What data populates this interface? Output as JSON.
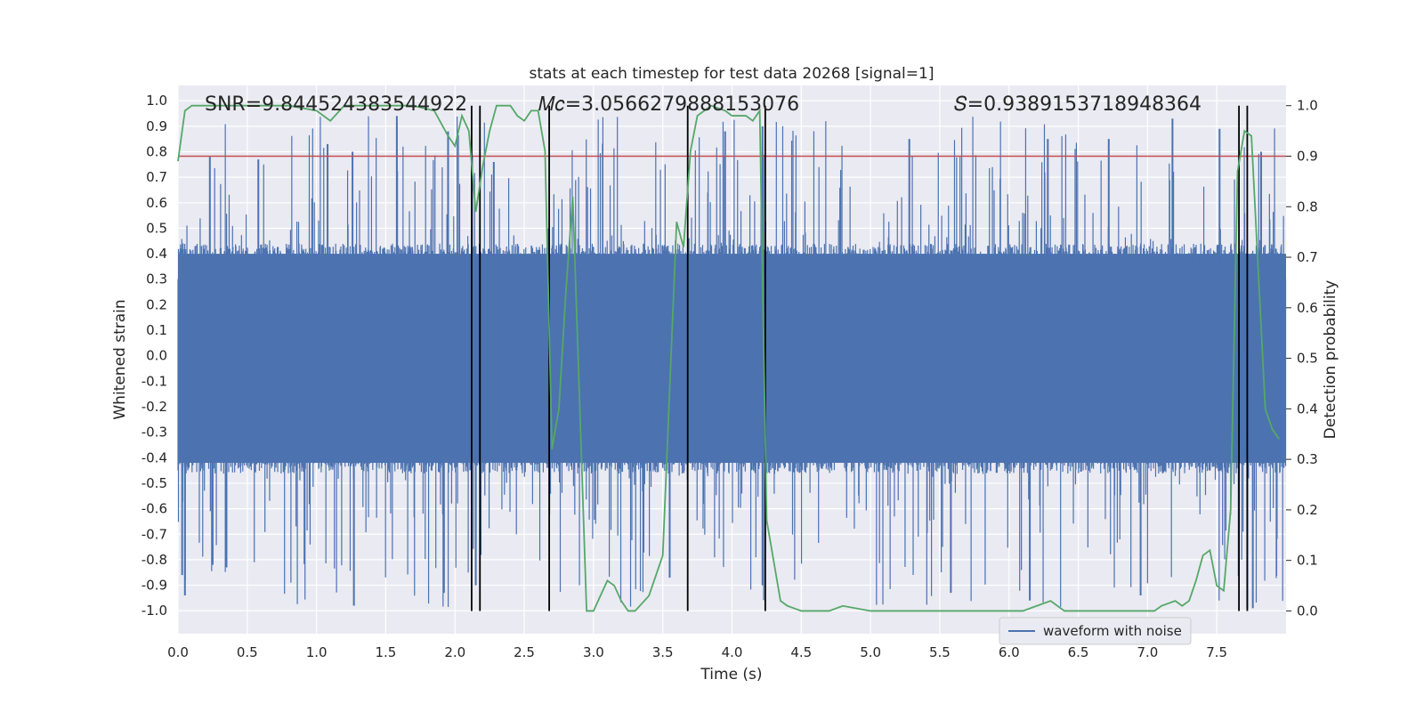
{
  "chart_data": {
    "type": "line",
    "title": "stats at each timestep for test data 20268 [signal=1]",
    "xlabel": "Time (s)",
    "ylabel_left": "Whitened strain",
    "ylabel_right": "Detection probability",
    "xlim": [
      0.0,
      8.0
    ],
    "ylim_left": [
      -1.09,
      1.06
    ],
    "ylim_right": [
      -0.045,
      1.04
    ],
    "x_ticks": [
      "0.0",
      "0.5",
      "1.0",
      "1.5",
      "2.0",
      "2.5",
      "3.0",
      "3.5",
      "4.0",
      "4.5",
      "5.0",
      "5.5",
      "6.0",
      "6.5",
      "7.0",
      "7.5"
    ],
    "x_tick_values": [
      0.0,
      0.5,
      1.0,
      1.5,
      2.0,
      2.5,
      3.0,
      3.5,
      4.0,
      4.5,
      5.0,
      5.5,
      6.0,
      6.5,
      7.0,
      7.5
    ],
    "y_ticks_left": [
      "1.0",
      "0.9",
      "0.8",
      "0.7",
      "0.6",
      "0.5",
      "0.4",
      "0.3",
      "0.2",
      "0.1",
      "0.0",
      "-0.1",
      "-0.2",
      "-0.3",
      "-0.4",
      "-0.5",
      "-0.6",
      "-0.7",
      "-0.8",
      "-0.9",
      "-1.0"
    ],
    "y_tick_values_left": [
      1.0,
      0.9,
      0.8,
      0.7,
      0.6,
      0.5,
      0.4,
      0.3,
      0.2,
      0.1,
      0.0,
      -0.1,
      -0.2,
      -0.3,
      -0.4,
      -0.5,
      -0.6,
      -0.7,
      -0.8,
      -0.9,
      -1.0
    ],
    "y_ticks_right": [
      "1.0",
      "0.9",
      "0.8",
      "0.7",
      "0.6",
      "0.5",
      "0.4",
      "0.3",
      "0.2",
      "0.1",
      "0.0"
    ],
    "y_tick_values_right": [
      1.0,
      0.9,
      0.8,
      0.7,
      0.6,
      0.5,
      0.4,
      0.3,
      0.2,
      0.1,
      0.0
    ],
    "annotations": [
      {
        "text": "SNR=9.844524383544922",
        "x": 0.2
      },
      {
        "text": "𝑀𝑐=3.0566279888153076",
        "x": 2.6
      },
      {
        "text": "𝑆=0.9389153718948364",
        "x": 5.6
      }
    ],
    "legend": {
      "label": "waveform with noise",
      "position": "lower-right"
    },
    "colors": {
      "waveform": "#4c72b0",
      "probability": "#55a868",
      "threshold": "#c44e52",
      "markers": "#000000",
      "plot_bg": "#eaeaf2",
      "grid": "#ffffff"
    },
    "waveform": {
      "name": "waveform with noise",
      "envelope_typical": [
        -0.42,
        0.4
      ],
      "peaks_max": 0.94,
      "troughs_min": -0.99,
      "notable_peaks": [
        {
          "x": 0.23,
          "y": 0.78
        },
        {
          "x": 0.58,
          "y": 0.77
        },
        {
          "x": 1.08,
          "y": 0.83
        },
        {
          "x": 1.26,
          "y": 0.8
        },
        {
          "x": 1.58,
          "y": 0.94
        },
        {
          "x": 1.95,
          "y": 0.88
        },
        {
          "x": 2.28,
          "y": 0.76
        },
        {
          "x": 3.95,
          "y": 0.88
        },
        {
          "x": 4.22,
          "y": 0.9
        },
        {
          "x": 5.28,
          "y": 0.85
        },
        {
          "x": 6.28,
          "y": 0.85
        },
        {
          "x": 6.72,
          "y": 0.85
        },
        {
          "x": 7.18,
          "y": 0.93
        },
        {
          "x": 7.52,
          "y": 0.89
        },
        {
          "x": 7.82,
          "y": 0.8
        }
      ],
      "notable_troughs": [
        {
          "x": 0.03,
          "y": -0.86
        },
        {
          "x": 0.05,
          "y": -0.94
        },
        {
          "x": 0.25,
          "y": -0.82
        },
        {
          "x": 0.35,
          "y": -0.83
        },
        {
          "x": 1.27,
          "y": -0.98
        },
        {
          "x": 1.92,
          "y": -0.93
        },
        {
          "x": 2.15,
          "y": -0.9
        },
        {
          "x": 3.55,
          "y": -0.87
        },
        {
          "x": 4.22,
          "y": -0.9
        },
        {
          "x": 5.58,
          "y": -0.93
        },
        {
          "x": 6.15,
          "y": -0.96
        },
        {
          "x": 6.95,
          "y": -0.94
        },
        {
          "x": 7.72,
          "y": -0.99
        },
        {
          "x": 7.76,
          "y": -0.99
        }
      ]
    },
    "probability": {
      "name": "detection probability",
      "x": [
        0.0,
        0.05,
        0.1,
        0.2,
        0.4,
        0.6,
        0.8,
        1.0,
        1.1,
        1.2,
        1.3,
        1.5,
        1.7,
        1.85,
        1.95,
        2.0,
        2.05,
        2.1,
        2.15,
        2.2,
        2.25,
        2.3,
        2.4,
        2.45,
        2.5,
        2.55,
        2.6,
        2.65,
        2.7,
        2.75,
        2.8,
        2.85,
        2.95,
        3.0,
        3.1,
        3.15,
        3.2,
        3.25,
        3.3,
        3.4,
        3.5,
        3.6,
        3.65,
        3.7,
        3.75,
        3.85,
        3.95,
        4.0,
        4.1,
        4.15,
        4.2,
        4.25,
        4.35,
        4.4,
        4.5,
        4.7,
        4.8,
        5.0,
        5.2,
        5.4,
        5.6,
        5.8,
        6.0,
        6.1,
        6.2,
        6.3,
        6.4,
        6.6,
        6.8,
        7.0,
        7.05,
        7.1,
        7.2,
        7.25,
        7.3,
        7.35,
        7.4,
        7.45,
        7.5,
        7.55,
        7.6,
        7.65,
        7.7,
        7.75,
        7.85,
        7.9,
        7.95
      ],
      "y": [
        0.89,
        0.99,
        1.0,
        1.0,
        1.0,
        1.0,
        1.0,
        0.99,
        0.97,
        1.0,
        1.0,
        1.0,
        1.0,
        0.99,
        0.94,
        0.92,
        0.98,
        0.95,
        0.79,
        0.88,
        0.95,
        1.0,
        1.0,
        0.98,
        0.97,
        0.99,
        0.99,
        0.91,
        0.32,
        0.4,
        0.63,
        0.82,
        0.0,
        0.0,
        0.06,
        0.05,
        0.02,
        0.0,
        0.0,
        0.03,
        0.11,
        0.77,
        0.72,
        0.91,
        0.98,
        1.0,
        0.99,
        0.98,
        0.98,
        0.97,
        0.99,
        0.18,
        0.02,
        0.01,
        0.0,
        0.0,
        0.01,
        0.0,
        0.0,
        0.0,
        0.0,
        0.0,
        0.0,
        0.0,
        0.01,
        0.02,
        0.0,
        0.0,
        0.0,
        0.0,
        0.0,
        0.01,
        0.02,
        0.01,
        0.02,
        0.06,
        0.11,
        0.12,
        0.05,
        0.04,
        0.2,
        0.87,
        0.95,
        0.94,
        0.4,
        0.36,
        0.34
      ]
    },
    "threshold": {
      "name": "threshold",
      "y_right": 0.9
    },
    "vertical_lines": [
      2.12,
      2.18,
      2.68,
      3.68,
      4.24,
      7.66,
      7.72
    ],
    "grid": true
  }
}
